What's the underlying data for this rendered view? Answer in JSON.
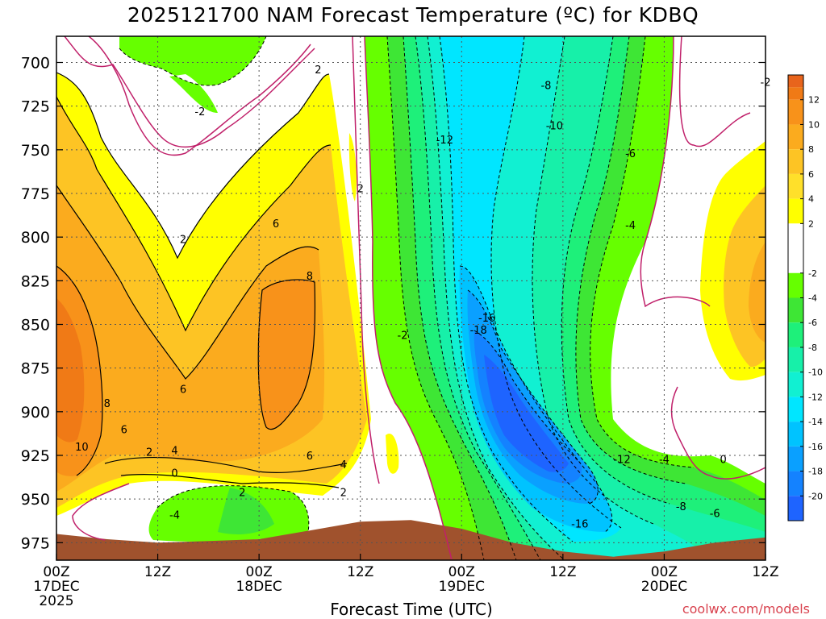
{
  "title": "2025121700 NAM Forecast Temperature (ºC) for KDBQ",
  "xlabel": "Forecast Time (UTC)",
  "credit": "coolwx.com/models",
  "chart_data": {
    "type": "heatmap",
    "title": "2025121700 NAM Forecast Temperature (ºC) for KDBQ",
    "xlabel": "Forecast Time (UTC)",
    "ylabel": "",
    "x_units": "forecast hour",
    "xlim": [
      0,
      84
    ],
    "ylim": [
      985,
      685
    ],
    "y_ticks": [
      700,
      725,
      750,
      775,
      800,
      825,
      850,
      875,
      900,
      925,
      950,
      975
    ],
    "x_ticks": [
      {
        "hour": 0,
        "labels": [
          "00Z",
          "17DEC",
          "2025"
        ]
      },
      {
        "hour": 12,
        "labels": [
          "12Z"
        ]
      },
      {
        "hour": 24,
        "labels": [
          "00Z",
          "18DEC"
        ]
      },
      {
        "hour": 36,
        "labels": [
          "12Z"
        ]
      },
      {
        "hour": 48,
        "labels": [
          "00Z",
          "19DEC"
        ]
      },
      {
        "hour": 60,
        "labels": [
          "12Z"
        ]
      },
      {
        "hour": 72,
        "labels": [
          "00Z",
          "20DEC"
        ]
      },
      {
        "hour": 84,
        "labels": [
          "12Z"
        ]
      }
    ],
    "grid": true,
    "colorbar": {
      "labels": [
        "12",
        "10",
        "8",
        "6",
        "4",
        "2",
        "-2",
        "-4",
        "-6",
        "-8",
        "-10",
        "-12",
        "-14",
        "-16",
        "-18",
        "-20"
      ],
      "bands": [
        {
          "min": 13,
          "max": 14,
          "color": "#e8641c"
        },
        {
          "min": 12,
          "max": 13,
          "color": "#f07a16"
        },
        {
          "min": 10,
          "max": 12,
          "color": "#f8921a"
        },
        {
          "min": 8,
          "max": 10,
          "color": "#fbab1e"
        },
        {
          "min": 6,
          "max": 8,
          "color": "#fdc424"
        },
        {
          "min": 4,
          "max": 6,
          "color": "#ffe02a"
        },
        {
          "min": 2,
          "max": 4,
          "color": "#ffff00"
        },
        {
          "min": -2,
          "max": 2,
          "color": "#ffffff"
        },
        {
          "min": -4,
          "max": -2,
          "color": "#66ff00"
        },
        {
          "min": -6,
          "max": -4,
          "color": "#3ee635"
        },
        {
          "min": -8,
          "max": -6,
          "color": "#1ef07a"
        },
        {
          "min": -10,
          "max": -8,
          "color": "#17f0a9"
        },
        {
          "min": -12,
          "max": -10,
          "color": "#11f0d2"
        },
        {
          "min": -14,
          "max": -12,
          "color": "#00e6ff"
        },
        {
          "min": -16,
          "max": -14,
          "color": "#00c3ff"
        },
        {
          "min": -18,
          "max": -16,
          "color": "#0aa0ff"
        },
        {
          "min": -20,
          "max": -18,
          "color": "#1482ff"
        },
        {
          "min": -22,
          "max": -20,
          "color": "#1e64ff"
        }
      ]
    },
    "terrain_color": "#a0522d",
    "terrain": [
      [
        0,
        970
      ],
      [
        6,
        973
      ],
      [
        12,
        975
      ],
      [
        18,
        974
      ],
      [
        24,
        973
      ],
      [
        30,
        968
      ],
      [
        36,
        963
      ],
      [
        42,
        962
      ],
      [
        48,
        967
      ],
      [
        54,
        975
      ],
      [
        60,
        980
      ],
      [
        66,
        983
      ],
      [
        72,
        980
      ],
      [
        78,
        975
      ],
      [
        84,
        972
      ]
    ],
    "contour_labels": [
      {
        "t": 31,
        "p": 704,
        "text": "2"
      },
      {
        "t": 17,
        "p": 728,
        "text": "-2"
      },
      {
        "t": 58,
        "p": 713,
        "text": "-8"
      },
      {
        "t": 84,
        "p": 711,
        "text": "-2"
      },
      {
        "t": 59,
        "p": 736,
        "text": "-10"
      },
      {
        "t": 46,
        "p": 744,
        "text": "-12"
      },
      {
        "t": 68,
        "p": 752,
        "text": "-6"
      },
      {
        "t": 36,
        "p": 772,
        "text": "2"
      },
      {
        "t": 26,
        "p": 792,
        "text": "6"
      },
      {
        "t": 68,
        "p": 793,
        "text": "-4"
      },
      {
        "t": 15,
        "p": 801,
        "text": "2"
      },
      {
        "t": 30,
        "p": 822,
        "text": "8"
      },
      {
        "t": 51,
        "p": 846,
        "text": "-16"
      },
      {
        "t": 50,
        "p": 853,
        "text": "-18"
      },
      {
        "t": 41,
        "p": 856,
        "text": "-2"
      },
      {
        "t": 15,
        "p": 887,
        "text": "6"
      },
      {
        "t": 6,
        "p": 895,
        "text": "8"
      },
      {
        "t": 8,
        "p": 910,
        "text": "6"
      },
      {
        "t": 3,
        "p": 920,
        "text": "10"
      },
      {
        "t": 11,
        "p": 923,
        "text": "2"
      },
      {
        "t": 14,
        "p": 922,
        "text": "4"
      },
      {
        "t": 30,
        "p": 925,
        "text": "6"
      },
      {
        "t": 14,
        "p": 935,
        "text": "0"
      },
      {
        "t": 34,
        "p": 930,
        "text": "4"
      },
      {
        "t": 22,
        "p": 946,
        "text": "2"
      },
      {
        "t": 34,
        "p": 946,
        "text": "2"
      },
      {
        "t": 14,
        "p": 959,
        "text": "-4"
      },
      {
        "t": 67,
        "p": 927,
        "text": "-12"
      },
      {
        "t": 72,
        "p": 927,
        "text": "-4"
      },
      {
        "t": 79,
        "p": 927,
        "text": "0"
      },
      {
        "t": 74,
        "p": 954,
        "text": "-8"
      },
      {
        "t": 78,
        "p": 958,
        "text": "-6"
      },
      {
        "t": 62,
        "p": 964,
        "text": "-16"
      }
    ]
  }
}
